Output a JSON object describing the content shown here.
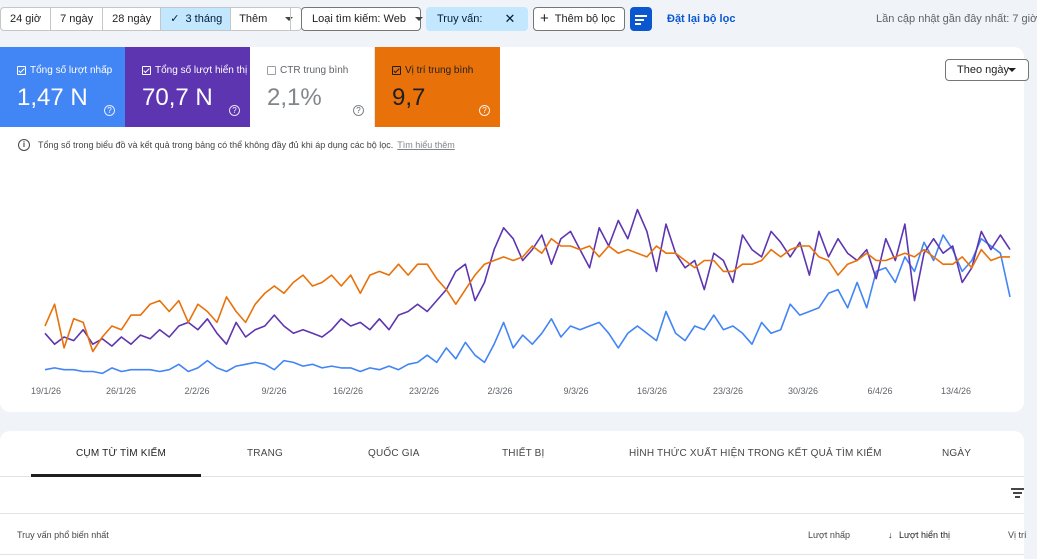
{
  "toolbar": {
    "date_ranges": [
      "24 giờ",
      "7 ngày",
      "28 ngày",
      "3 tháng"
    ],
    "active_range": "3 tháng",
    "more_label": "Thêm",
    "search_type_label": "Loại tìm kiếm: Web",
    "query_chip_label": "Truy vấn:",
    "add_filter_label": "Thêm bộ lọc",
    "reset_label": "Đặt lại bộ lọc",
    "last_updated_label": "Lần cập nhật gần đây nhất: 7 giờ"
  },
  "metrics": {
    "clicks": {
      "label": "Tổng số lượt nhấp",
      "value": "1,47 N",
      "selected": true,
      "color": "#4285f4"
    },
    "impressions": {
      "label": "Tổng số lượt hiển thị",
      "value": "70,7 N",
      "selected": true,
      "color": "#5e35b1"
    },
    "ctr": {
      "label": "CTR trung bình",
      "value": "2,1%",
      "selected": false
    },
    "position": {
      "label": "Vị trí trung bình",
      "value": "9,7",
      "selected": true,
      "color": "#e8710a"
    }
  },
  "chart_controls": {
    "period_label": "Theo ngày",
    "note": "Tổng số trong biểu đồ và kết quả trong bảng có thể không đầy đủ khi áp dụng các bộ lọc.",
    "learn_more": "Tìm hiểu thêm"
  },
  "chart_data": {
    "type": "line",
    "x_tick_labels": [
      "19/1/26",
      "26/1/26",
      "2/2/26",
      "9/2/26",
      "16/2/26",
      "23/2/26",
      "2/3/26",
      "9/3/26",
      "16/3/26",
      "23/3/26",
      "30/3/26",
      "6/4/26",
      "13/4/26"
    ],
    "series": [
      {
        "name": "Tổng số lượt nhấp",
        "color": "#4285f4",
        "values": [
          4,
          5,
          4,
          4,
          3,
          3,
          2,
          5,
          3,
          4,
          4,
          4,
          3,
          4,
          7,
          3,
          5,
          9,
          5,
          3,
          6,
          7,
          8,
          7,
          4,
          9,
          8,
          6,
          7,
          5,
          6,
          5,
          5,
          3,
          5,
          4,
          6,
          4,
          7,
          8,
          12,
          8,
          16,
          10,
          19,
          12,
          8,
          18,
          30,
          16,
          23,
          18,
          24,
          32,
          22,
          28,
          26,
          28,
          30,
          24,
          16,
          24,
          28,
          24,
          20,
          36,
          24,
          20,
          28,
          26,
          34,
          26,
          28,
          24,
          18,
          30,
          24,
          26,
          40,
          34,
          36,
          38,
          46,
          48,
          38,
          52,
          38,
          58,
          60,
          52,
          66,
          58,
          74,
          64,
          78,
          70,
          58,
          64,
          76,
          72,
          68,
          44
        ]
      },
      {
        "name": "Tổng số lượt hiển thị",
        "color": "#5e35b1",
        "values": [
          24,
          18,
          22,
          20,
          26,
          18,
          21,
          17,
          22,
          18,
          23,
          21,
          26,
          22,
          28,
          30,
          26,
          32,
          24,
          18,
          30,
          22,
          26,
          28,
          34,
          28,
          24,
          26,
          24,
          22,
          26,
          32,
          28,
          30,
          26,
          32,
          26,
          34,
          36,
          40,
          36,
          42,
          48,
          58,
          62,
          42,
          52,
          70,
          82,
          76,
          64,
          70,
          78,
          62,
          76,
          80,
          70,
          60,
          82,
          72,
          86,
          76,
          92,
          80,
          58,
          84,
          68,
          60,
          64,
          48,
          68,
          64,
          52,
          78,
          70,
          66,
          80,
          74,
          66,
          74,
          56,
          80,
          66,
          76,
          68,
          64,
          70,
          54,
          76,
          64,
          84,
          42,
          68,
          76,
          68,
          72,
          52,
          60,
          80,
          70,
          78,
          70
        ]
      },
      {
        "name": "Vị trí trung bình",
        "color": "#e8710a",
        "values": [
          28,
          40,
          16,
          32,
          30,
          14,
          22,
          28,
          26,
          34,
          34,
          40,
          42,
          36,
          42,
          30,
          40,
          36,
          30,
          44,
          36,
          30,
          40,
          46,
          50,
          46,
          52,
          56,
          50,
          52,
          56,
          50,
          56,
          46,
          56,
          58,
          56,
          62,
          56,
          62,
          62,
          54,
          48,
          40,
          48,
          56,
          62,
          64,
          66,
          64,
          66,
          72,
          68,
          76,
          72,
          72,
          70,
          72,
          66,
          72,
          68,
          70,
          68,
          66,
          72,
          68,
          68,
          64,
          60,
          64,
          64,
          58,
          58,
          62,
          62,
          64,
          70,
          66,
          70,
          72,
          72,
          66,
          64,
          56,
          62,
          64,
          68,
          64,
          64,
          66,
          68,
          66,
          70,
          66,
          62,
          62,
          66,
          60,
          70,
          64,
          66,
          66
        ]
      }
    ],
    "grid": false
  },
  "table": {
    "tabs": [
      "CỤM TỪ TÌM KIẾM",
      "TRANG",
      "QUỐC GIA",
      "THIẾT BỊ",
      "HÌNH THỨC XUẤT HIỆN TRONG KẾT QUẢ TÌM KIẾM",
      "NGÀY"
    ],
    "active_tab": "CỤM TỪ TÌM KIẾM",
    "columns": {
      "query": "Truy vấn phổ biến nhất",
      "clicks": "Lượt nhấp",
      "impressions": "Lượt hiển thị",
      "position": "Vị trí"
    },
    "sort_arrow": "↓"
  }
}
